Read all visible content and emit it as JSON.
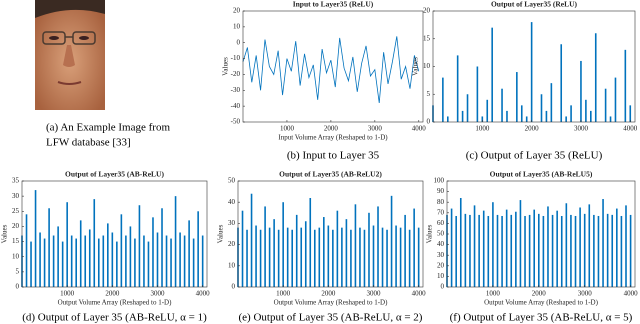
{
  "image_panel": {
    "caption": [
      "(a) An Example Image from",
      "LFW database [33]"
    ]
  },
  "chart_data": [
    {
      "type": "line",
      "title": "Input to Layer35 (ReLU)",
      "ylabel": "Values",
      "xlabel": "Input Volume Array (Reshaped to 1-D)",
      "caption": "(b) Input to Layer 35",
      "color": "#0072bd",
      "x": [
        0,
        100,
        200,
        300,
        400,
        500,
        600,
        700,
        800,
        900,
        1000,
        1100,
        1200,
        1300,
        1400,
        1500,
        1600,
        1700,
        1800,
        1900,
        2000,
        2100,
        2200,
        2300,
        2400,
        2500,
        2600,
        2700,
        2800,
        2900,
        3000,
        3100,
        3200,
        3300,
        3400,
        3500,
        3600,
        3700,
        3800,
        3900,
        4000
      ],
      "values": [
        -12,
        -3,
        -25,
        -8,
        -30,
        2,
        -15,
        -20,
        -5,
        -33,
        -10,
        -18,
        1,
        -27,
        -7,
        -22,
        -14,
        -36,
        -4,
        -19,
        -11,
        -28,
        3,
        -16,
        -24,
        -9,
        -31,
        -13,
        -2,
        -21,
        -17,
        -38,
        -6,
        -26,
        -12,
        4,
        -23,
        -15,
        -29,
        -8,
        -18
      ],
      "xlim": [
        0,
        4096
      ],
      "ylim": [
        -50,
        20
      ],
      "xticks": [
        1000,
        2000,
        3000,
        4000
      ],
      "yticks": [
        -50,
        -40,
        -30,
        -20,
        -10,
        0,
        10,
        20
      ]
    },
    {
      "type": "bar",
      "title": "Output of Layer35 (ReLU)",
      "ylabel": "Values",
      "caption": "(c) Output of Layer 35 (ReLU)",
      "color": "#0072bd",
      "x": [
        0,
        100,
        200,
        300,
        400,
        500,
        600,
        700,
        800,
        900,
        1000,
        1100,
        1200,
        1300,
        1400,
        1500,
        1600,
        1700,
        1800,
        1900,
        2000,
        2100,
        2200,
        2300,
        2400,
        2500,
        2600,
        2700,
        2800,
        2900,
        3000,
        3100,
        3200,
        3300,
        3400,
        3500,
        3600,
        3700,
        3800,
        3900,
        4000
      ],
      "values": [
        3,
        0,
        8,
        1,
        0,
        12,
        2,
        5,
        0,
        10,
        1,
        4,
        17,
        0,
        6,
        2,
        0,
        9,
        3,
        1,
        18,
        0,
        5,
        2,
        7,
        0,
        14,
        1,
        3,
        0,
        11,
        4,
        2,
        16,
        0,
        6,
        1,
        8,
        0,
        13,
        3
      ],
      "xlim": [
        0,
        4096
      ],
      "ylim": [
        0,
        20
      ],
      "xticks": [
        1000,
        2000,
        3000,
        4000
      ],
      "yticks": [
        0,
        5,
        10,
        15,
        20
      ]
    },
    {
      "type": "bar",
      "title": "Output of Layer35 (AB-ReLU)",
      "ylabel": "Values",
      "xlabel": "Output Volume Array (Reshaped to 1-D)",
      "caption": "(d) Output of Layer 35 (AB-ReLU, α = 1)",
      "color": "#0072bd",
      "x": [
        0,
        100,
        200,
        300,
        400,
        500,
        600,
        700,
        800,
        900,
        1000,
        1100,
        1200,
        1300,
        1400,
        1500,
        1600,
        1700,
        1800,
        1900,
        2000,
        2100,
        2200,
        2300,
        2400,
        2500,
        2600,
        2700,
        2800,
        2900,
        3000,
        3100,
        3200,
        3300,
        3400,
        3500,
        3600,
        3700,
        3800,
        3900,
        4000
      ],
      "values": [
        17,
        24,
        15,
        32,
        18,
        16,
        26,
        17,
        20,
        15,
        28,
        17,
        16,
        22,
        17,
        19,
        29,
        16,
        17,
        21,
        18,
        15,
        24,
        17,
        20,
        16,
        27,
        17,
        15,
        23,
        18,
        26,
        17,
        16,
        30,
        18,
        17,
        22,
        16,
        25,
        17
      ],
      "xlim": [
        0,
        4096
      ],
      "ylim": [
        0,
        35
      ],
      "xticks": [
        1000,
        2000,
        3000,
        4000
      ],
      "yticks": [
        0,
        5,
        10,
        15,
        20,
        25,
        30,
        35
      ]
    },
    {
      "type": "bar",
      "title": "Output of Layer35 (AB-ReLU2)",
      "ylabel": "Values",
      "xlabel": "Output Volume Array (Reshaped to 1-D)",
      "caption": "(e) Output of Layer 35 (AB-ReLU, α = 2)",
      "color": "#0072bd",
      "x": [
        0,
        100,
        200,
        300,
        400,
        500,
        600,
        700,
        800,
        900,
        1000,
        1100,
        1200,
        1300,
        1400,
        1500,
        1600,
        1700,
        1800,
        1900,
        2000,
        2100,
        2200,
        2300,
        2400,
        2500,
        2600,
        2700,
        2800,
        2900,
        3000,
        3100,
        3200,
        3300,
        3400,
        3500,
        3600,
        3700,
        3800,
        3900,
        4000
      ],
      "values": [
        28,
        36,
        27,
        44,
        29,
        27,
        38,
        28,
        32,
        27,
        40,
        28,
        27,
        34,
        28,
        31,
        42,
        27,
        28,
        33,
        29,
        27,
        36,
        28,
        32,
        27,
        39,
        28,
        27,
        35,
        29,
        38,
        28,
        27,
        43,
        29,
        28,
        34,
        27,
        37,
        28
      ],
      "xlim": [
        0,
        4096
      ],
      "ylim": [
        0,
        50
      ],
      "xticks": [
        1000,
        2000,
        3000,
        4000
      ],
      "yticks": [
        0,
        10,
        20,
        30,
        40,
        50
      ]
    },
    {
      "type": "bar",
      "title": "Output of Layer35 (AB-ReLU5)",
      "ylabel": "Values",
      "xlabel": "Output Volume Array (Reshaped to 1-D)",
      "caption": "(f) Output of Layer 35 (AB-ReLU, α = 5)",
      "color": "#0072bd",
      "x": [
        0,
        100,
        200,
        300,
        400,
        500,
        600,
        700,
        800,
        900,
        1000,
        1100,
        1200,
        1300,
        1400,
        1500,
        1600,
        1700,
        1800,
        1900,
        2000,
        2100,
        2200,
        2300,
        2400,
        2500,
        2600,
        2700,
        2800,
        2900,
        3000,
        3100,
        3200,
        3300,
        3400,
        3500,
        3600,
        3700,
        3800,
        3900,
        4000
      ],
      "values": [
        68,
        74,
        67,
        84,
        69,
        68,
        77,
        68,
        72,
        67,
        80,
        68,
        67,
        73,
        68,
        71,
        82,
        67,
        68,
        73,
        69,
        67,
        76,
        68,
        72,
        67,
        79,
        68,
        67,
        75,
        69,
        78,
        68,
        67,
        83,
        69,
        68,
        74,
        67,
        77,
        68
      ],
      "xlim": [
        0,
        4096
      ],
      "ylim": [
        0,
        100
      ],
      "xticks": [
        1000,
        2000,
        3000,
        4000
      ],
      "yticks": [
        0,
        10,
        20,
        30,
        40,
        50,
        60,
        70,
        80,
        90,
        100
      ]
    }
  ]
}
